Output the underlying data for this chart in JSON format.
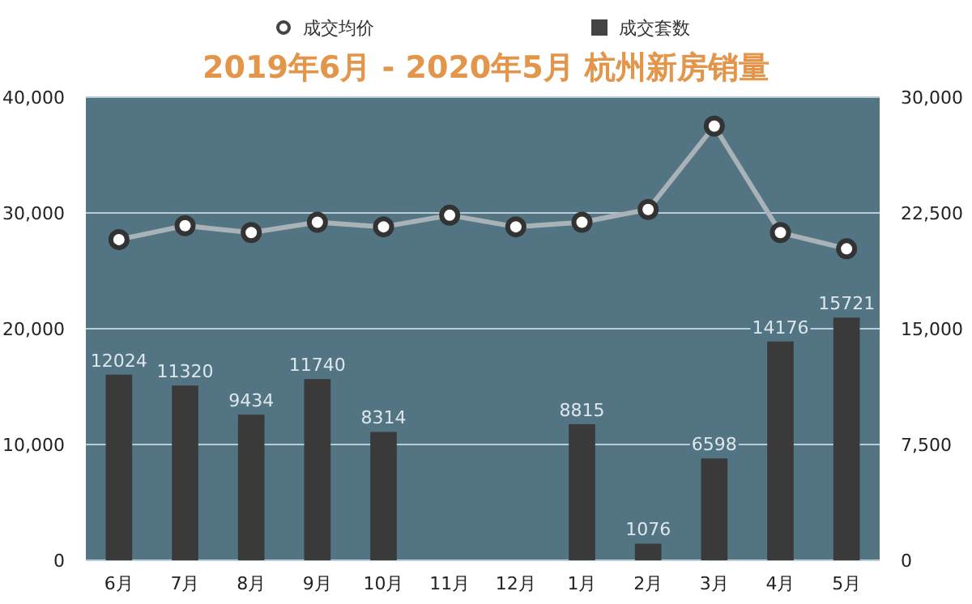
{
  "chart_data": {
    "type": "bar",
    "title": "2019年6月 - 2020年5月   杭州新房销量",
    "categories": [
      "6月",
      "7月",
      "8月",
      "9月",
      "10月",
      "11月",
      "12月",
      "1月",
      "2月",
      "3月",
      "4月",
      "5月"
    ],
    "series": [
      {
        "name": "成交套数",
        "axis": "y2",
        "color": "#3b3a3a",
        "values": [
          12024,
          11320,
          9434,
          11740,
          8314,
          null,
          null,
          8815,
          1076,
          6598,
          14176,
          15721
        ],
        "value_labels": [
          "12024",
          "11320",
          "9434",
          "11740",
          "8314",
          null,
          null,
          "8815",
          "1076",
          "6598",
          "14176",
          "15721"
        ]
      },
      {
        "name": "成交均价",
        "type": "line",
        "color": "#a9b2b6",
        "values": [
          27700,
          28900,
          28300,
          29200,
          28800,
          29800,
          28800,
          29200,
          30300,
          37500,
          28300,
          26900
        ]
      }
    ],
    "ylim": [
      0,
      40000
    ],
    "yticks": [
      {
        "value": 0,
        "label": "0"
      },
      {
        "value": 10000,
        "label": "10,000"
      },
      {
        "value": 20000,
        "label": "20,000"
      },
      {
        "value": 30000,
        "label": "30,000"
      },
      {
        "value": 40000,
        "label": "40,000"
      }
    ],
    "y2lim": [
      0,
      30000
    ],
    "y2ticks": [
      {
        "value": 0,
        "label": "0"
      },
      {
        "value": 7500,
        "label": "7,500"
      },
      {
        "value": 15000,
        "label": "15,000"
      },
      {
        "value": 22500,
        "label": "22,500"
      },
      {
        "value": 30000,
        "label": "30,000"
      }
    ],
    "grid": "y",
    "legend": "top",
    "marker": "circle",
    "line_style": "solid"
  }
}
